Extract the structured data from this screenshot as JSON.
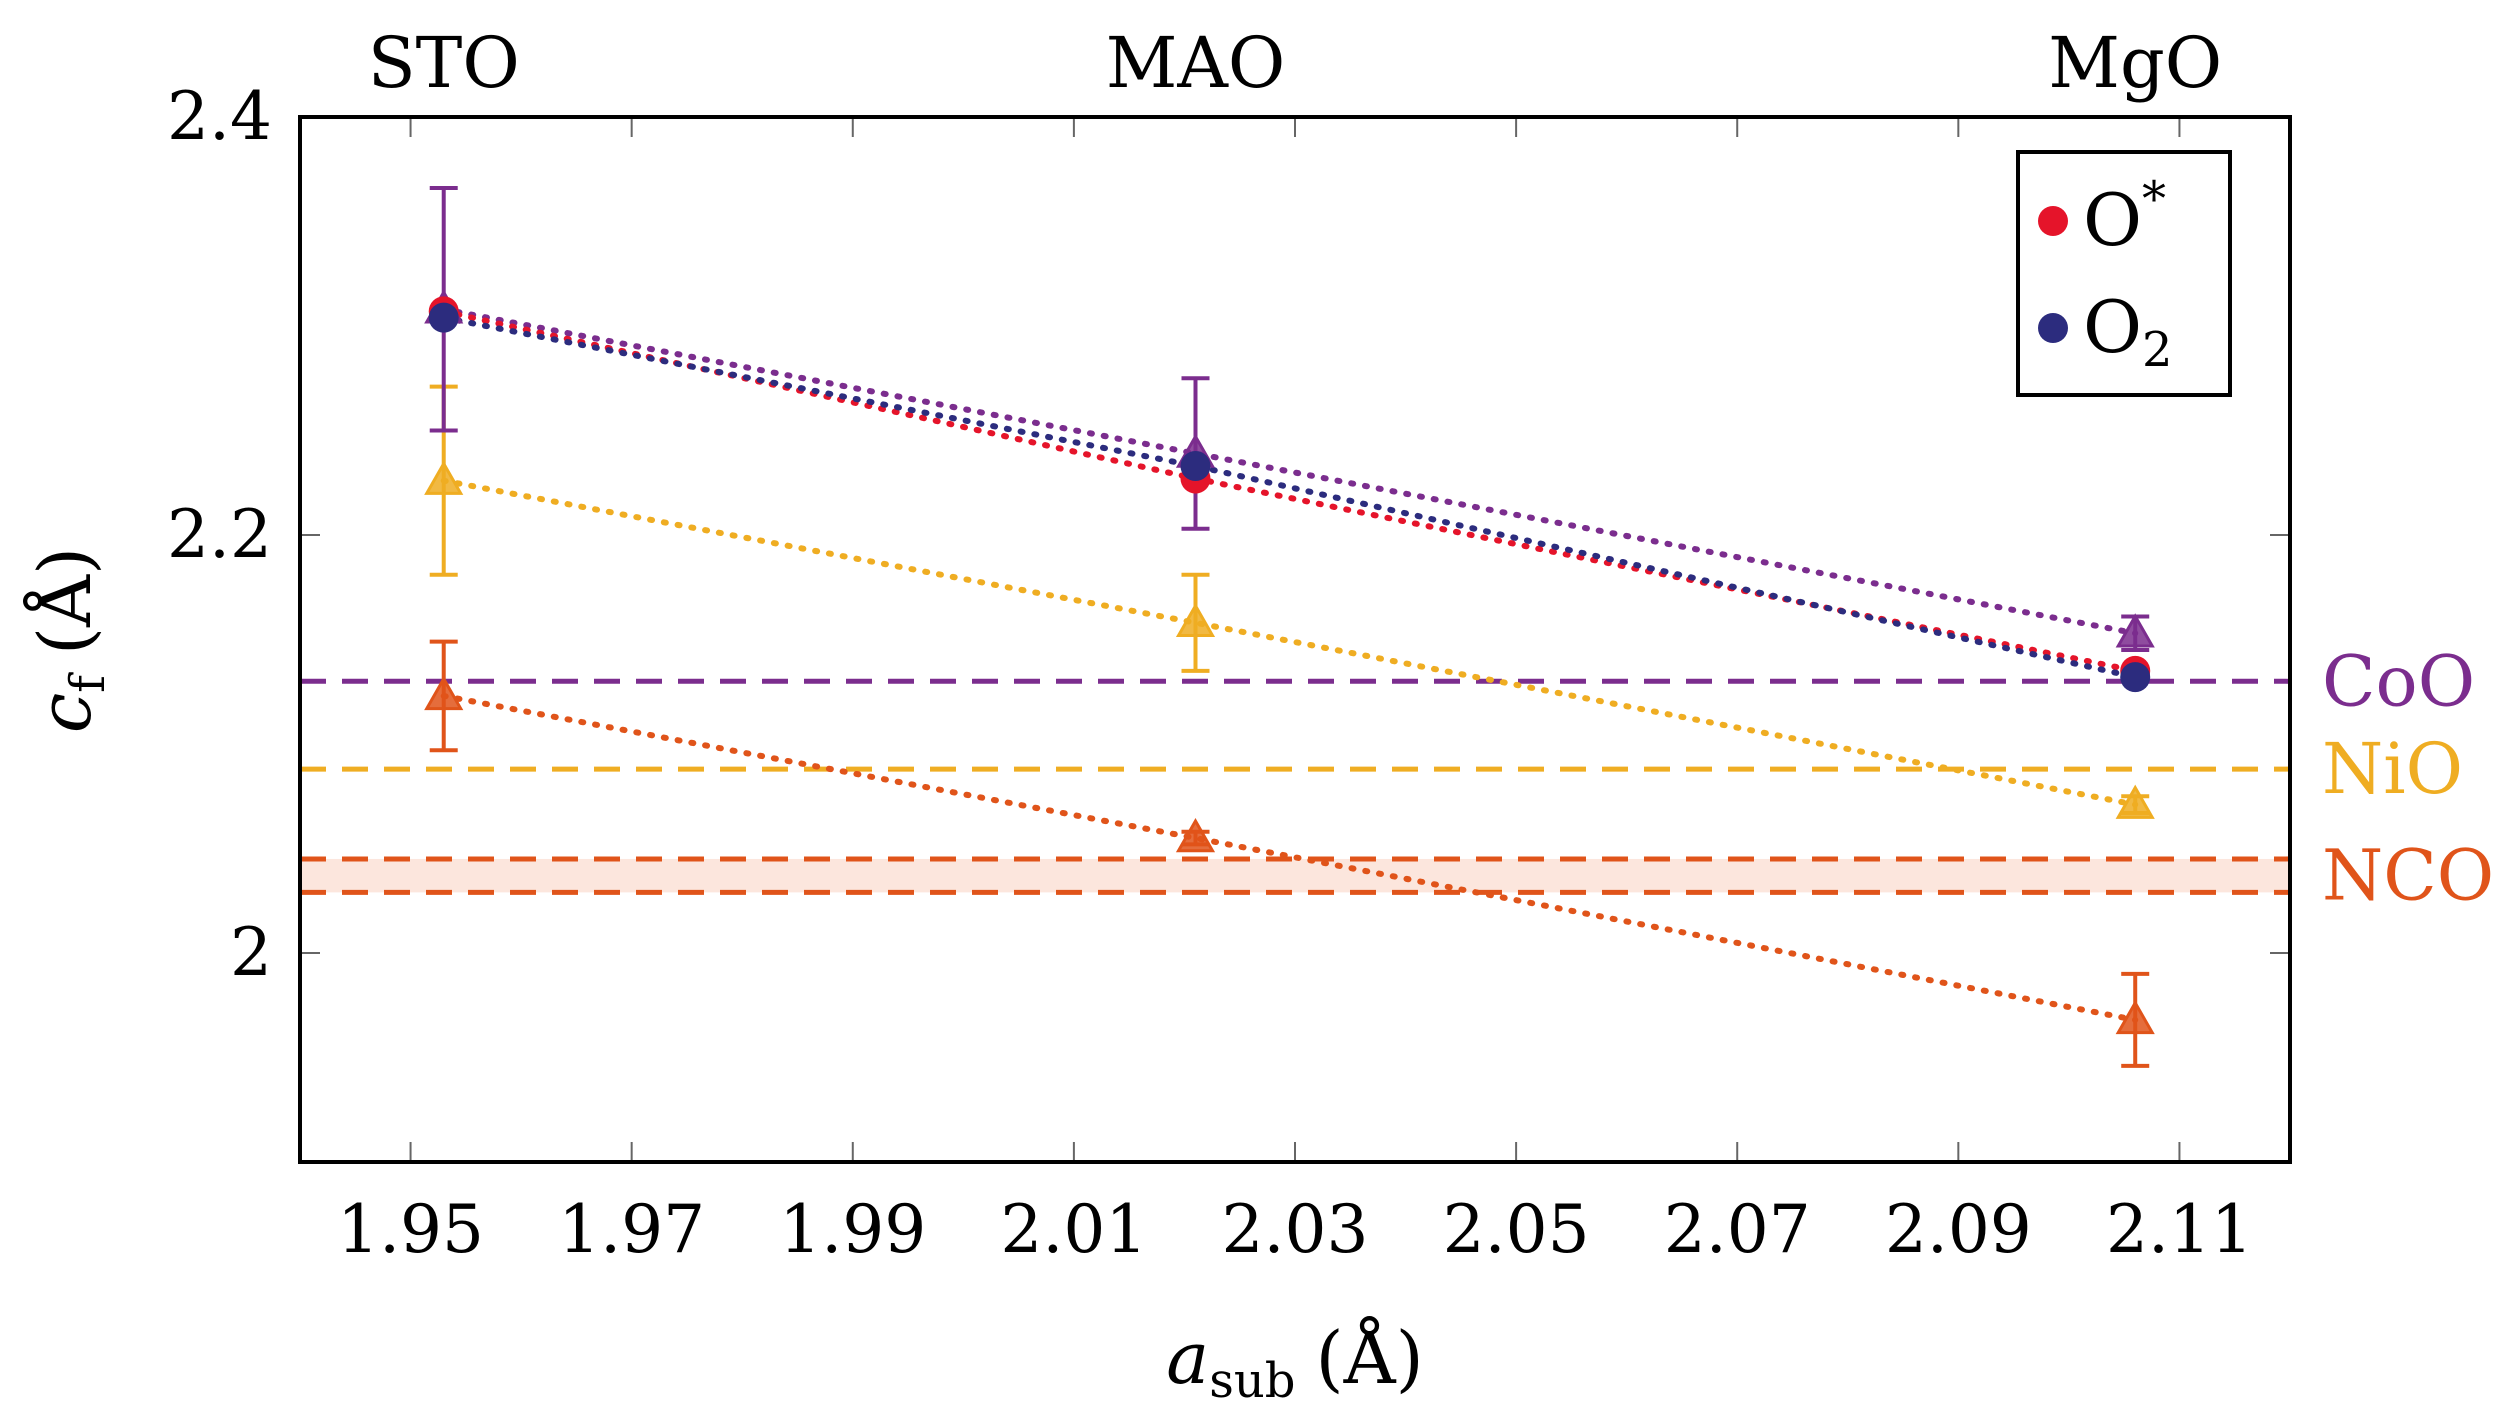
{
  "chart_data": {
    "type": "scatter",
    "title": "",
    "xlabel": {
      "var": "a",
      "sub": "sub",
      "unit": "(Å)"
    },
    "ylabel": {
      "var": "c",
      "sub": "f",
      "unit": "(Å)"
    },
    "xlim": [
      1.94,
      2.12
    ],
    "ylim": [
      1.9,
      2.4
    ],
    "xticks": [
      "1.95",
      "1.97",
      "1.99",
      "2.01",
      "2.03",
      "2.05",
      "2.07",
      "2.09",
      "2.11"
    ],
    "yticks": [
      "2",
      "2.2",
      "2.4"
    ],
    "substrates": [
      {
        "name": "STO",
        "x": 1.953
      },
      {
        "name": "MAO",
        "x": 2.021
      },
      {
        "name": "MgO",
        "x": 2.106
      }
    ],
    "reference_lines": [
      {
        "name": "CoO",
        "y": 2.13,
        "color": "#7B2D8E"
      },
      {
        "name": "NiO",
        "y": 2.088,
        "color": "#EFAD22"
      },
      {
        "name": "NCO",
        "y": 2.045,
        "y2": 2.029,
        "color": "#E0541A",
        "band_color": "#FCE6DD"
      }
    ],
    "series": [
      {
        "name": "O*",
        "marker": "circle",
        "color": "#E5142A",
        "x": [
          1.953,
          2.021,
          2.106
        ],
        "y": [
          2.307,
          2.227,
          2.135
        ],
        "err": [
          0,
          0,
          0
        ]
      },
      {
        "name": "O2",
        "marker": "circle",
        "color": "#2C2C7E",
        "x": [
          1.953,
          2.021,
          2.106
        ],
        "y": [
          2.304,
          2.233,
          2.132
        ],
        "err": [
          0,
          0,
          0
        ]
      },
      {
        "name": "CoO",
        "marker": "triangle",
        "color": "#7B2D8E",
        "x": [
          1.953,
          2.021,
          2.106
        ],
        "y": [
          2.308,
          2.239,
          2.153
        ],
        "err": [
          0.058,
          0.036,
          0.008
        ]
      },
      {
        "name": "NiO",
        "marker": "triangle",
        "color": "#EFAD22",
        "x": [
          1.953,
          2.021,
          2.106
        ],
        "y": [
          2.226,
          2.158,
          2.071
        ],
        "err": [
          0.045,
          0.023,
          0.004
        ]
      },
      {
        "name": "NCO",
        "marker": "triangle",
        "color": "#E0541A",
        "x": [
          1.953,
          2.021,
          2.106
        ],
        "y": [
          2.123,
          2.055,
          1.968
        ],
        "err": [
          0.026,
          0.003,
          0.022
        ]
      }
    ],
    "legend": {
      "position": "top-right",
      "entries": [
        {
          "label": "O",
          "sup": "*",
          "color": "#E5142A"
        },
        {
          "label": "O",
          "sub": "2",
          "color": "#2C2C7E"
        }
      ]
    }
  }
}
